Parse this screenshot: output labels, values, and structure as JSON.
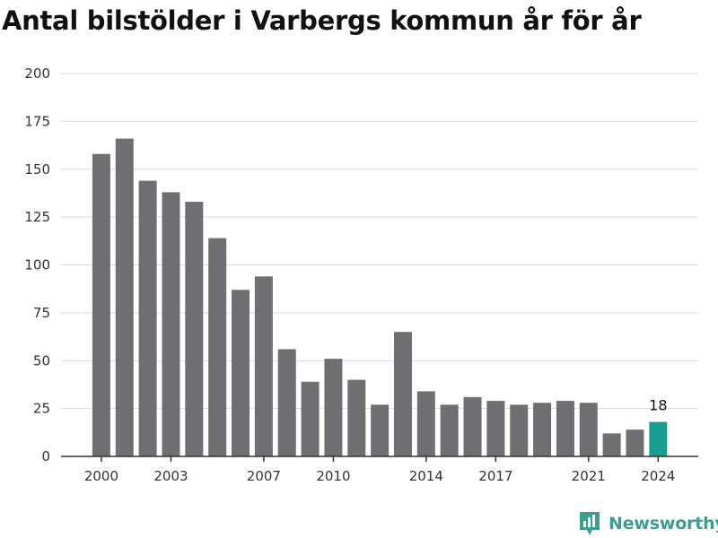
{
  "title": "Antal bilstölder i Varbergs kommun år för år",
  "brand": "Newsworthy",
  "colors": {
    "bar": "#6f6e72",
    "highlight": "#1a9e8f",
    "grid": "#d9d9d9",
    "axis": "#333333",
    "brand": "#3a9e92"
  },
  "chart_data": {
    "type": "bar",
    "title": "Antal bilstölder i Varbergs kommun år för år",
    "xlabel": "",
    "ylabel": "",
    "categories": [
      "2000",
      "2001",
      "2002",
      "2003",
      "2004",
      "2005",
      "2006",
      "2007",
      "2008",
      "2009",
      "2010",
      "2011",
      "2012",
      "2013",
      "2014",
      "2015",
      "2016",
      "2017",
      "2018",
      "2019",
      "2020",
      "2021",
      "2022",
      "2023",
      "2024"
    ],
    "values": [
      158,
      166,
      144,
      138,
      133,
      114,
      87,
      94,
      56,
      39,
      51,
      40,
      27,
      65,
      34,
      27,
      31,
      29,
      27,
      28,
      29,
      28,
      12,
      14,
      18
    ],
    "highlight_index": 24,
    "data_labels": [
      {
        "index": 24,
        "text": "18"
      }
    ],
    "x_tick_labels": [
      "2000",
      "2003",
      "2007",
      "2010",
      "2014",
      "2017",
      "2021",
      "2024"
    ],
    "y_ticks": [
      0,
      25,
      50,
      75,
      100,
      125,
      150,
      175,
      200
    ],
    "ylim": [
      0,
      200
    ],
    "grid": true
  }
}
